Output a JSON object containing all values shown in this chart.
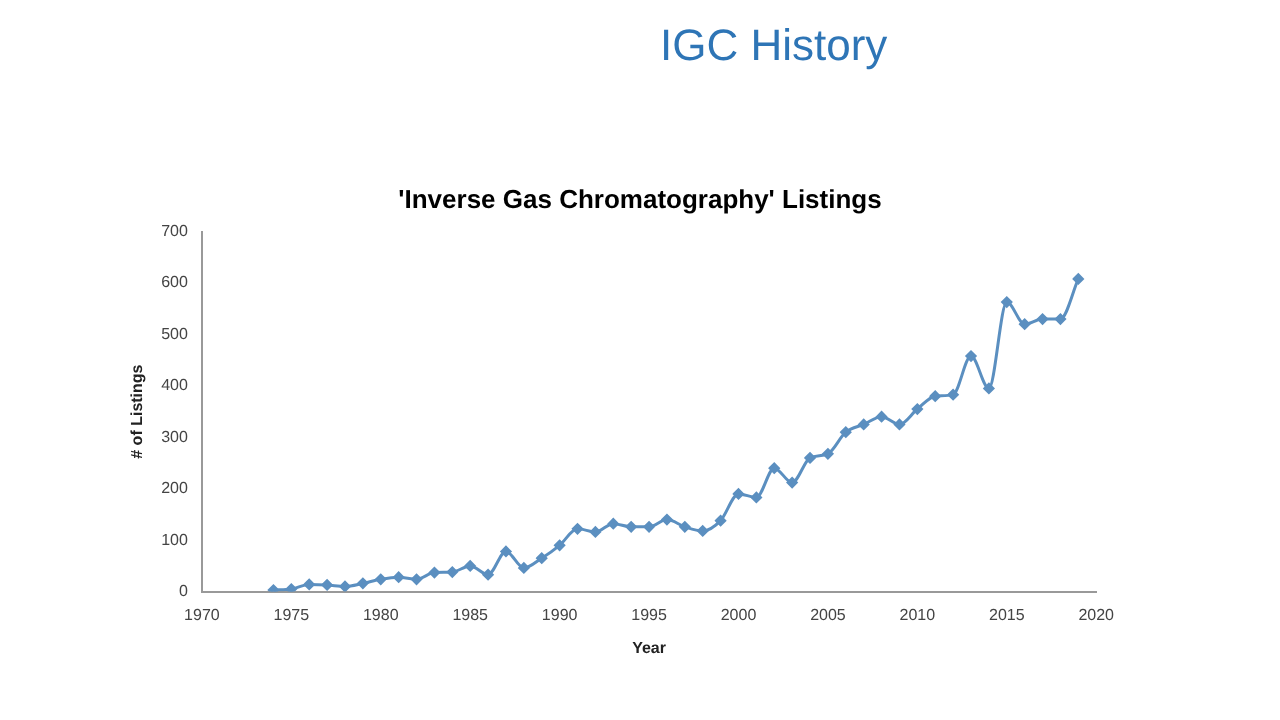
{
  "chart_data": {
    "type": "line",
    "title": "IGC History",
    "subtitle": "'Inverse Gas Chromatography' Listings",
    "xlabel": "Year",
    "ylabel": "# of Listings",
    "x": [
      1974,
      1975,
      1976,
      1977,
      1978,
      1979,
      1980,
      1981,
      1982,
      1983,
      1984,
      1985,
      1986,
      1987,
      1988,
      1989,
      1990,
      1991,
      1992,
      1993,
      1994,
      1995,
      1996,
      1997,
      1998,
      1999,
      2000,
      2001,
      2002,
      2003,
      2004,
      2005,
      2006,
      2007,
      2008,
      2009,
      2010,
      2011,
      2012,
      2013,
      2014,
      2015,
      2016,
      2017,
      2018,
      2019
    ],
    "series": [
      {
        "color": "#5b8fc0",
        "values": [
          3,
          5,
          14,
          13,
          10,
          16,
          24,
          28,
          24,
          37,
          38,
          50,
          33,
          78,
          46,
          65,
          90,
          122,
          116,
          132,
          126,
          126,
          140,
          126,
          118,
          138,
          190,
          183,
          240,
          212,
          260,
          268,
          310,
          325,
          340,
          325,
          355,
          380,
          383,
          458,
          395,
          563,
          520,
          530,
          530,
          608
        ]
      }
    ],
    "xlim": [
      1970,
      2020
    ],
    "xticks": [
      1970,
      1975,
      1980,
      1985,
      1990,
      1995,
      2000,
      2005,
      2010,
      2015,
      2020
    ],
    "ylim": [
      0,
      700
    ],
    "yticks": [
      0,
      100,
      200,
      300,
      400,
      500,
      600,
      700
    ],
    "grid": false,
    "legend": false,
    "marker": "diamond",
    "line_style": "solid"
  }
}
